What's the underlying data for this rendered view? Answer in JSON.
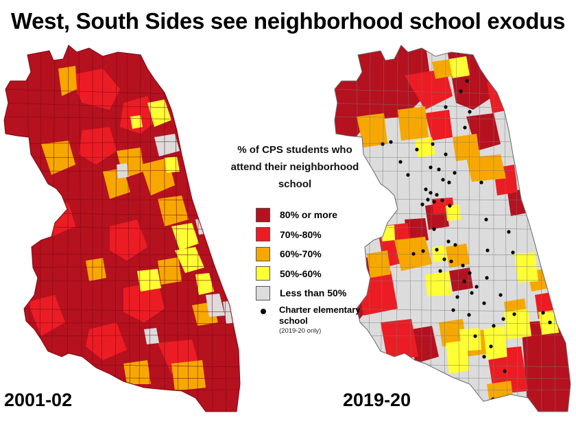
{
  "title": "West, South Sides see neighborhood school exodus",
  "maps": [
    {
      "year": "2001-02"
    },
    {
      "year": "2019-20"
    }
  ],
  "legend": {
    "title_lines": [
      "% of CPS students who",
      "attend their neighborhood",
      "school"
    ],
    "items": [
      {
        "label": "80% or more",
        "color": "#b5111f"
      },
      {
        "label": "70%-80%",
        "color": "#ec1c24"
      },
      {
        "label": "60%-70%",
        "color": "#f7a800"
      },
      {
        "label": "50%-60%",
        "color": "#ffff33"
      },
      {
        "label": "Less than 50%",
        "color": "#dcdcdc"
      }
    ],
    "charter": {
      "label": "Charter elementary school",
      "note": "(2019-20 only)"
    }
  }
}
